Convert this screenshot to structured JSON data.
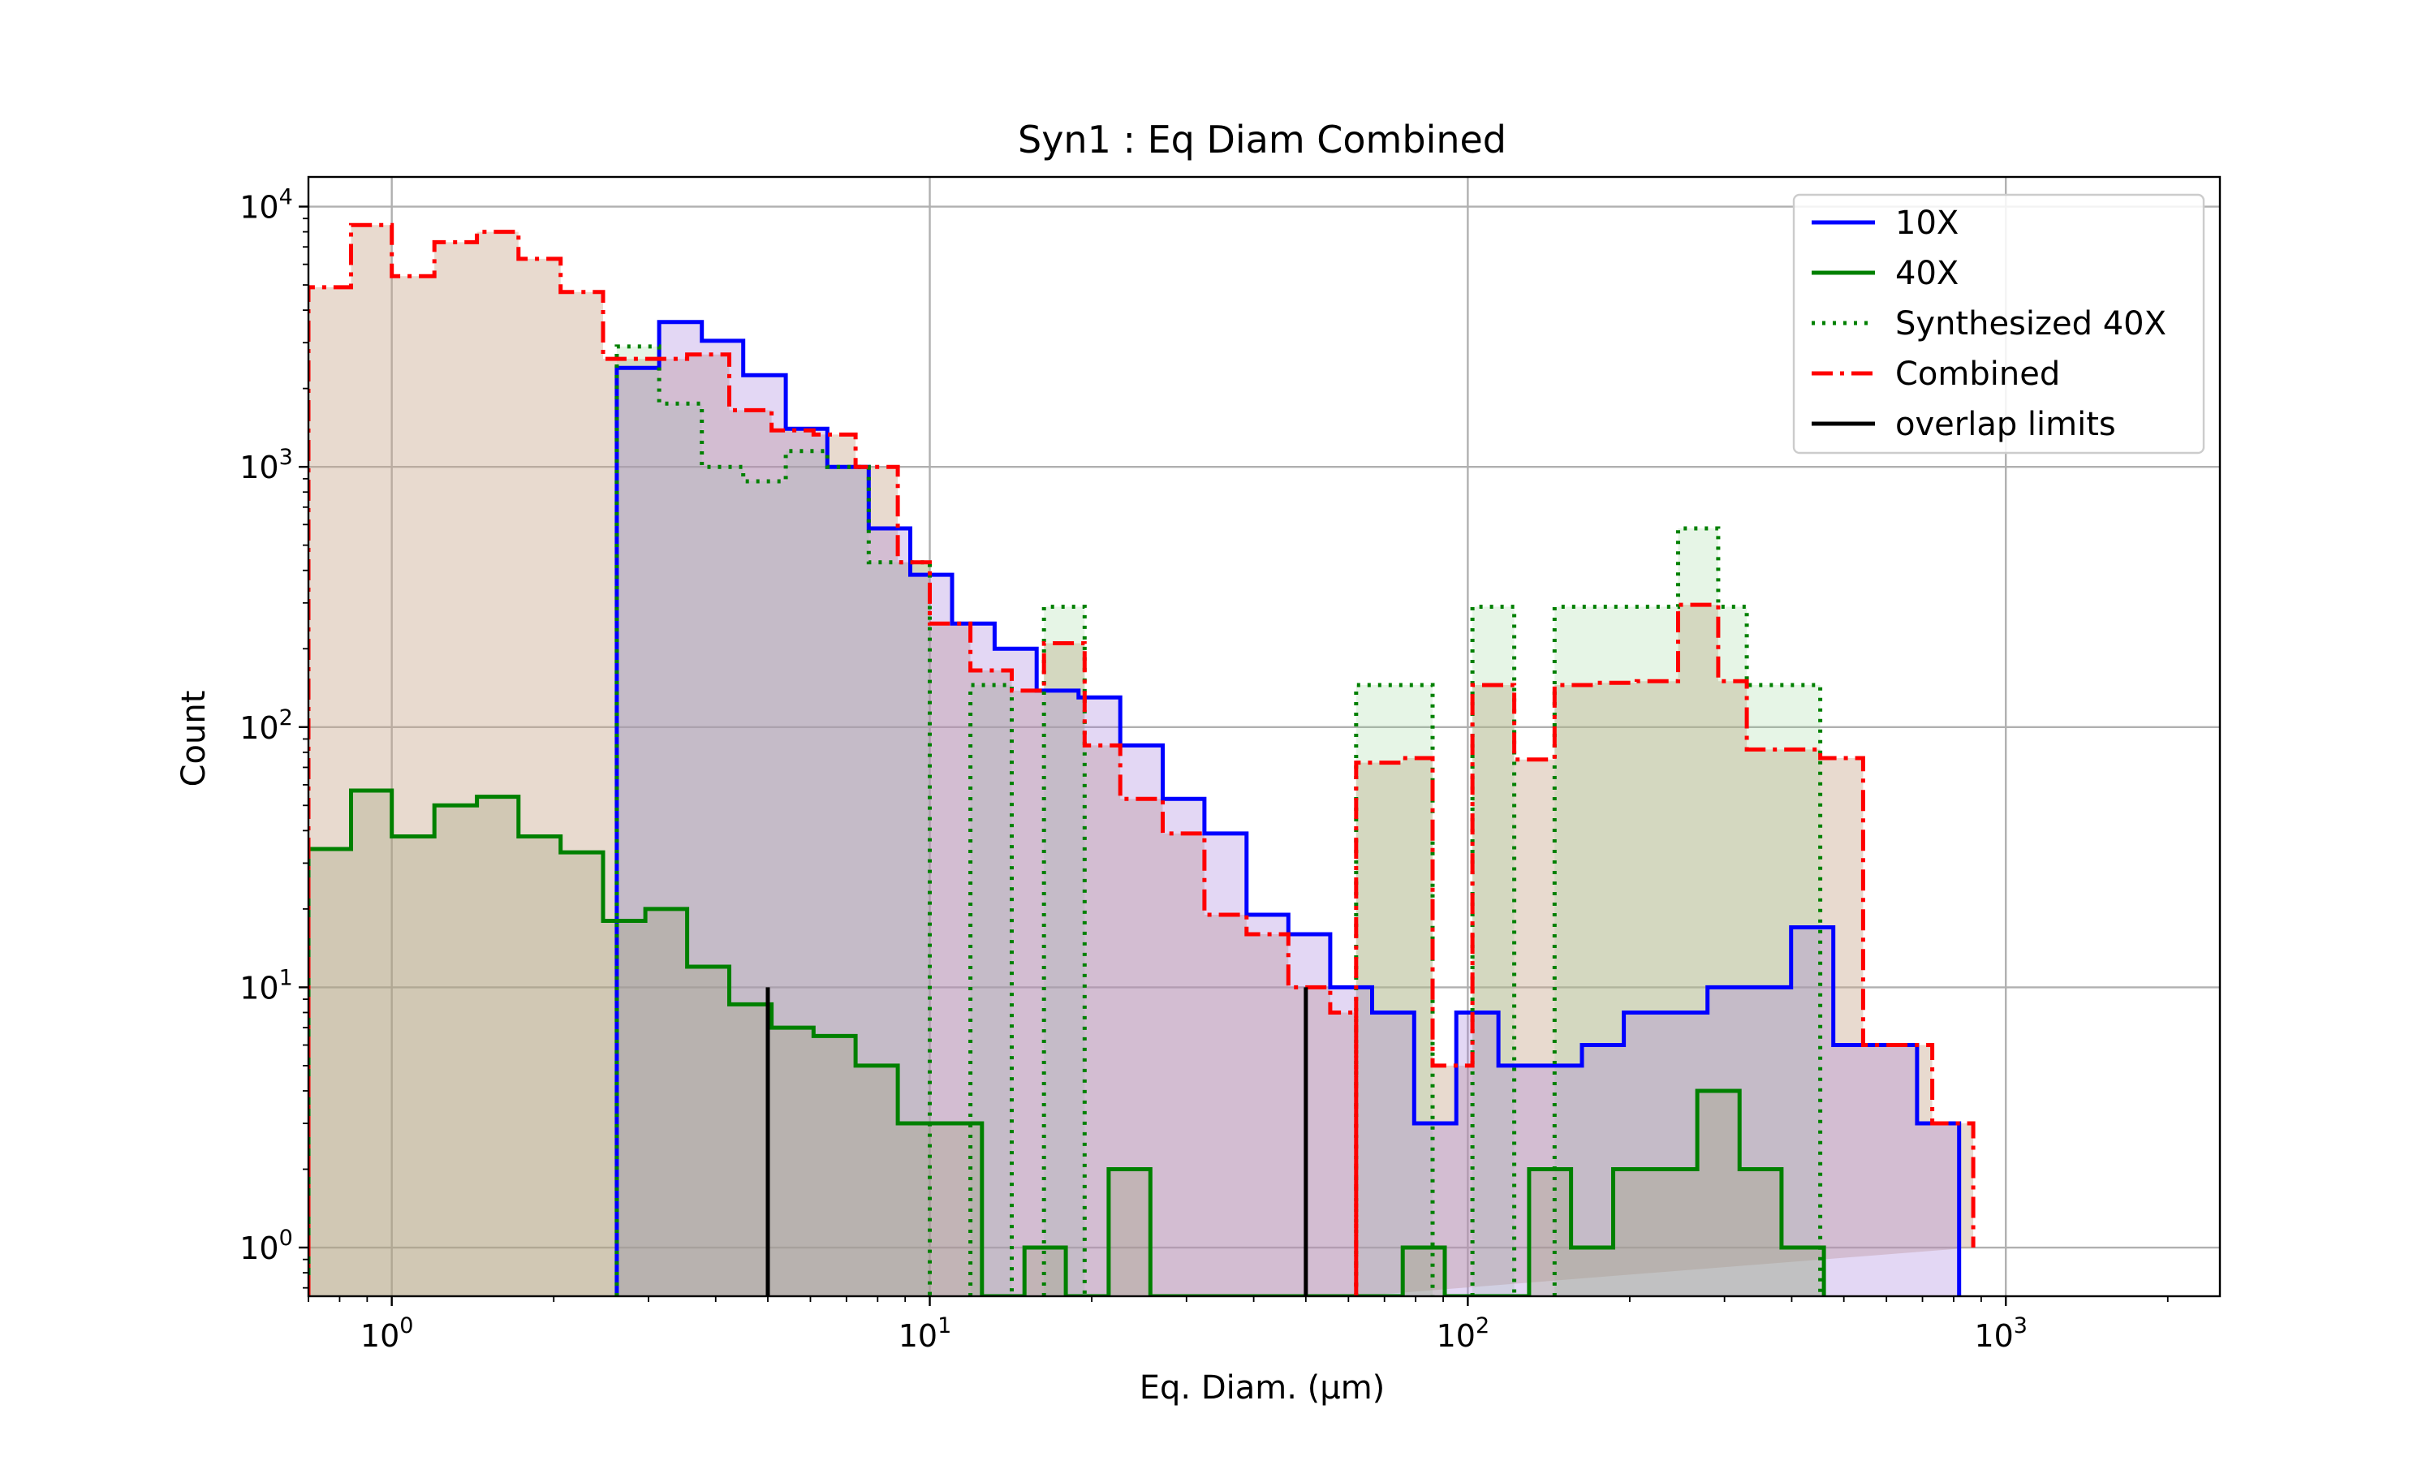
{
  "chart_data": {
    "type": "histogram",
    "title": "Syn1 : Eq Diam Combined",
    "xlabel": "Eq. Diam. (μm)",
    "ylabel": "Count",
    "xscale": "log",
    "yscale": "log",
    "xlim": [
      0.7,
      2500
    ],
    "ylim": [
      0.65,
      13000
    ],
    "x_ticks": [
      {
        "value": 1,
        "base": "10",
        "exp": "0"
      },
      {
        "value": 10,
        "base": "10",
        "exp": "1"
      },
      {
        "value": 100,
        "base": "10",
        "exp": "2"
      },
      {
        "value": 1000,
        "base": "10",
        "exp": "3"
      }
    ],
    "y_ticks": [
      {
        "value": 1,
        "base": "10",
        "exp": "0"
      },
      {
        "value": 10,
        "base": "10",
        "exp": "1"
      },
      {
        "value": 100,
        "base": "10",
        "exp": "2"
      },
      {
        "value": 1000,
        "base": "10",
        "exp": "3"
      },
      {
        "value": 10000,
        "base": "10",
        "exp": "4"
      }
    ],
    "grid": true,
    "legend_position": "top-right",
    "series": [
      {
        "name": "10X",
        "color": "#0000ff",
        "style": "solid",
        "fill": "#e4e4f8",
        "edges": [
          2.62,
          3.14,
          3.77,
          4.5,
          5.4,
          6.45,
          7.7,
          9.2,
          11.0,
          13.2,
          15.8,
          18.9,
          22.6,
          27.1,
          32.4,
          38.8,
          46.4,
          55.5,
          66.4,
          79.5,
          95.2,
          114,
          136,
          163,
          195,
          233,
          279,
          334,
          399,
          478,
          572,
          684,
          819
        ],
        "values": [
          2400,
          3600,
          3050,
          2250,
          1400,
          1000,
          580,
          385,
          250,
          200,
          138,
          130,
          85,
          53,
          39,
          19,
          16,
          10,
          8,
          3,
          8,
          5,
          5,
          6,
          8,
          8,
          10,
          10,
          17,
          6,
          6,
          3
        ]
      },
      {
        "name": "40X",
        "color": "#008000",
        "style": "solid",
        "fill": "#d5d8c2",
        "edges": [
          0.7,
          0.84,
          1.0,
          1.2,
          1.44,
          1.72,
          2.06,
          2.47,
          2.96,
          3.54,
          4.24,
          5.08,
          6.08,
          7.28,
          8.72,
          10.45,
          12.5,
          15.0,
          17.9,
          21.5,
          25.7,
          30.8,
          36.8,
          44.1,
          52.8,
          63.2,
          75.7,
          90.6,
          108.5,
          130,
          155.6,
          186.3,
          223,
          267,
          320,
          383,
          459
        ],
        "values": [
          34,
          57,
          38,
          50,
          54,
          38,
          33,
          18,
          20,
          12,
          8.6,
          7,
          6.5,
          5,
          3,
          3,
          0,
          1,
          0,
          2,
          0,
          0,
          0,
          0,
          0,
          0,
          1,
          0,
          0,
          2,
          1,
          2,
          2,
          4,
          2,
          1
        ]
      },
      {
        "name": "Synthesized 40X",
        "color": "#008000",
        "style": "dotted",
        "fill": "#e2efe0",
        "edges": [
          2.62,
          3.14,
          3.77,
          4.5,
          5.4,
          6.45,
          7.7,
          9.2,
          11.0,
          13.2,
          15.8,
          18.9,
          22.6,
          27.1,
          32.4,
          38.8,
          46.4,
          55.5,
          66.4,
          79.5,
          95.2,
          114,
          136,
          163,
          195,
          233,
          279,
          334,
          399,
          478,
          572,
          684,
          819
        ],
        "values": [
          2900,
          2650,
          2250,
          1400,
          1000,
          580,
          385,
          250,
          200,
          138,
          130,
          85,
          53,
          39,
          19,
          16,
          10,
          8,
          3,
          8,
          5,
          5,
          6,
          8,
          8,
          10,
          10,
          17,
          6,
          6,
          3,
          1
        ],
        "dotted_steps": [
          {
            "edges": [
              2.62,
              3.14,
              3.77,
              4.5,
              5.4,
              6.45,
              7.7,
              9.2,
              10.0
            ],
            "values": [
              2900,
              1750,
              1000,
              880,
              1150,
              1000,
              430,
              430
            ]
          },
          {
            "edges": [
              10.0,
              11.9
            ],
            "values": [
              0
            ]
          },
          {
            "edges": [
              11.9,
              14.2
            ],
            "values": [
              145
            ]
          },
          {
            "edges": [
              14.2,
              16.3
            ],
            "values": [
              0
            ]
          },
          {
            "edges": [
              16.3,
              19.4
            ],
            "values": [
              290
            ]
          },
          {
            "edges": [
              19.4,
              62.0
            ],
            "values": [
              0
            ]
          },
          {
            "edges": [
              62.0,
              86.0
            ],
            "values": [
              145
            ]
          },
          {
            "edges": [
              86.0,
              102.0
            ],
            "values": [
              0
            ]
          },
          {
            "edges": [
              102.0,
              122.0
            ],
            "values": [
              290
            ]
          },
          {
            "edges": [
              122.0,
              145.0
            ],
            "values": [
              0
            ]
          },
          {
            "edges": [
              145.0,
              172.0,
              206.0,
              246.0,
              292.0,
              330.0,
              452.0
            ],
            "values": [
              290,
              290,
              290,
              580,
              290,
              145
            ]
          }
        ]
      },
      {
        "name": "Combined",
        "color": "#ff0000",
        "style": "dashdot",
        "fill": "#e8dcd6",
        "steps": [
          {
            "edges": [
              0.7,
              0.84,
              1.0,
              1.2,
              1.44,
              1.72,
              2.06,
              2.47,
              2.96,
              3.54,
              4.24,
              5.08,
              6.08,
              7.28,
              8.72,
              10.0,
              11.9,
              14.2,
              16.3,
              19.4,
              22.6,
              27.1,
              32.4,
              38.8,
              46.4,
              55.5,
              62.0
            ],
            "values": [
              4900,
              8500,
              5400,
              7300,
              8000,
              6300,
              4700,
              2600,
              2600,
              2700,
              1650,
              1380,
              1330,
              1000,
              430,
              250,
              165,
              138,
              210,
              85,
              53,
              39,
              19,
              16,
              10,
              8
            ]
          },
          {
            "edges": [
              62.0,
              75.7,
              86.0,
              102.0,
              122.0,
              145.0,
              172.0,
              206.0,
              246.0,
              292.0,
              330.0,
              452.0,
              543.0,
              730.0,
              870.0
            ],
            "values": [
              73,
              76,
              5,
              145,
              75,
              145,
              148,
              150,
              295,
              150,
              82,
              76,
              6,
              3,
              1
            ]
          }
        ]
      },
      {
        "name": "overlap limits",
        "color": "#000000",
        "style": "solid",
        "lines": [
          {
            "x": 5.0,
            "y_from": 0.65,
            "y_to": 10
          },
          {
            "x": 50.0,
            "y_from": 0.65,
            "y_to": 10
          }
        ]
      }
    ]
  }
}
